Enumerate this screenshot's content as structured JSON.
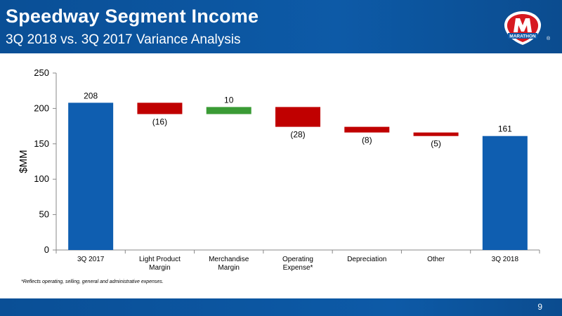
{
  "header": {
    "title": "Speedway Segment Income",
    "subtitle": "3Q 2018 vs. 3Q 2017 Variance Analysis",
    "logo_text": "MARATHON",
    "logo_mark": "®"
  },
  "footnote": "*Reflects operating, selling, general and administrative expenses.",
  "page_number": "9",
  "colors": {
    "total": "#0f5eb0",
    "decrease": "#c00000",
    "increase": "#3a9b35",
    "header_bg": "#0d5aa7"
  },
  "chart_data": {
    "type": "bar",
    "subtype": "waterfall",
    "ylabel": "$MM",
    "ylim": [
      0,
      250
    ],
    "yticks": [
      0,
      50,
      100,
      150,
      200,
      250
    ],
    "grid": false,
    "categories": [
      [
        "3Q 2017"
      ],
      [
        "Light Product",
        "Margin"
      ],
      [
        "Merchandise",
        "Margin"
      ],
      [
        "Operating",
        "Expense*"
      ],
      [
        "Depreciation"
      ],
      [
        "Other"
      ],
      [
        "3Q 2018"
      ]
    ],
    "values": [
      208,
      -16,
      10,
      -28,
      -8,
      -5,
      161
    ],
    "kinds": [
      "total",
      "decrease",
      "increase",
      "decrease",
      "decrease",
      "decrease",
      "total"
    ],
    "data_labels": [
      "208",
      "(16)",
      "10",
      "(28)",
      "(8)",
      "(5)",
      "161"
    ]
  }
}
